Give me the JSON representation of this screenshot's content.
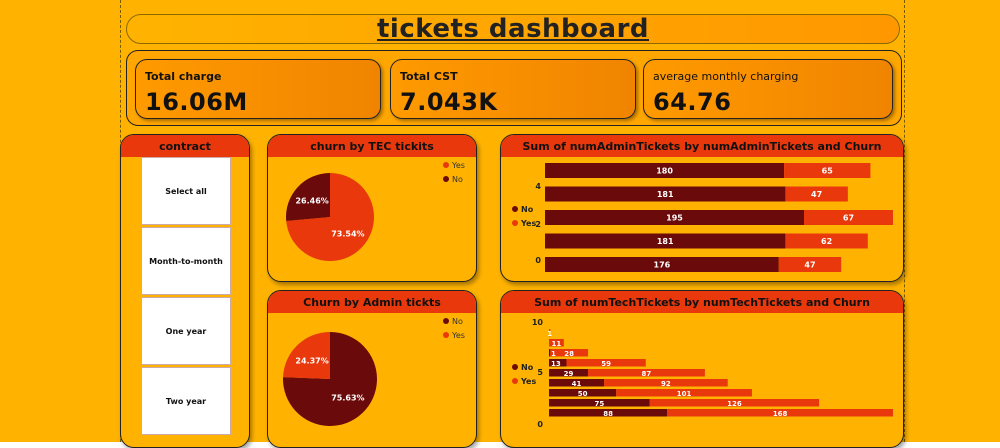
{
  "dashboard": {
    "title": "tickets dashboard"
  },
  "kpis": [
    {
      "label": "Total charge",
      "value": "16.06M"
    },
    {
      "label": "Total CST",
      "value": "7.043K"
    },
    {
      "label": "average monthly charging",
      "value": "64.76"
    }
  ],
  "contract_slicer": {
    "title": "contract",
    "items": [
      "Select all",
      "Month-to-month",
      "One year",
      "Two year"
    ]
  },
  "colors": {
    "no": "#6b0a0a",
    "yes": "#e8380c",
    "header": "#e8380c",
    "background": "#ffb300"
  },
  "chart_data": [
    {
      "type": "pie",
      "title": "churn by TEC tickits",
      "labels": [
        "Yes",
        "No"
      ],
      "values": [
        73.54,
        26.46
      ],
      "data_labels": [
        "73.54%",
        "26.46%"
      ],
      "legend": "top-right"
    },
    {
      "type": "pie",
      "title": "Churn by Admin tickts",
      "labels": [
        "No",
        "Yes"
      ],
      "values": [
        75.63,
        24.37
      ],
      "data_labels": [
        "75.63%",
        "24.37%"
      ],
      "legend": "top-right"
    },
    {
      "type": "bar",
      "orientation": "horizontal",
      "stacked": true,
      "title": "Sum of numAdminTickets by numAdminTickets and Churn",
      "y_ticks": [
        "4",
        "2",
        "0"
      ],
      "series": [
        {
          "name": "No",
          "values": [
            180,
            181,
            195,
            181,
            176
          ]
        },
        {
          "name": "Yes",
          "values": [
            65,
            47,
            67,
            62,
            47
          ]
        }
      ],
      "legend": "left"
    },
    {
      "type": "bar",
      "orientation": "horizontal",
      "stacked": true,
      "title": "Sum of numTechTickets by numTechTickets and Churn",
      "y_ticks": [
        "10",
        "5",
        "0"
      ],
      "series": [
        {
          "name": "No",
          "values": [
            0,
            0,
            1,
            13,
            29,
            41,
            50,
            75,
            88
          ]
        },
        {
          "name": "Yes",
          "values": [
            1,
            11,
            28,
            59,
            87,
            92,
            101,
            126,
            168
          ]
        }
      ],
      "no_labels": [
        "",
        "",
        "1",
        "13",
        "29",
        "41",
        "50",
        "75",
        "88"
      ],
      "legend": "left"
    }
  ]
}
